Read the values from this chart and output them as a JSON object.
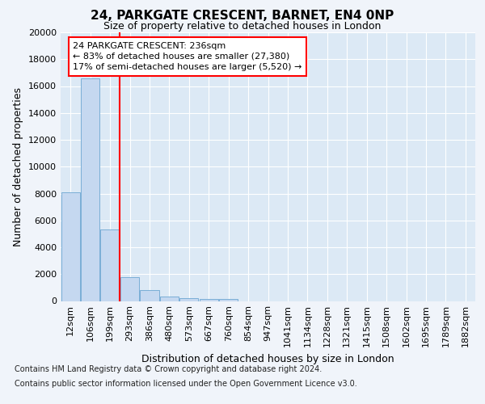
{
  "title_line1": "24, PARKGATE CRESCENT, BARNET, EN4 0NP",
  "title_line2": "Size of property relative to detached houses in London",
  "xlabel": "Distribution of detached houses by size in London",
  "ylabel": "Number of detached properties",
  "categories": [
    "12sqm",
    "106sqm",
    "199sqm",
    "293sqm",
    "386sqm",
    "480sqm",
    "573sqm",
    "667sqm",
    "760sqm",
    "854sqm",
    "947sqm",
    "1041sqm",
    "1134sqm",
    "1228sqm",
    "1321sqm",
    "1415sqm",
    "1508sqm",
    "1602sqm",
    "1695sqm",
    "1789sqm",
    "1882sqm"
  ],
  "values": [
    8100,
    16600,
    5300,
    1800,
    800,
    350,
    220,
    150,
    130,
    0,
    0,
    0,
    0,
    0,
    0,
    0,
    0,
    0,
    0,
    0,
    0
  ],
  "bar_color": "#c5d8f0",
  "bar_edge_color": "#7aaed6",
  "vline_x": 2.5,
  "vline_color": "red",
  "annotation_text": "24 PARKGATE CRESCENT: 236sqm\n← 83% of detached houses are smaller (27,380)\n17% of semi-detached houses are larger (5,520) →",
  "annotation_box_color": "white",
  "annotation_box_edge_color": "red",
  "ylim": [
    0,
    20000
  ],
  "yticks": [
    0,
    2000,
    4000,
    6000,
    8000,
    10000,
    12000,
    14000,
    16000,
    18000,
    20000
  ],
  "footer_line1": "Contains HM Land Registry data © Crown copyright and database right 2024.",
  "footer_line2": "Contains public sector information licensed under the Open Government Licence v3.0.",
  "background_color": "#f0f4fa",
  "plot_bg_color": "#dce9f5",
  "title_fontsize": 11,
  "subtitle_fontsize": 9,
  "ylabel_fontsize": 9,
  "xlabel_fontsize": 9,
  "tick_fontsize": 8,
  "annotation_fontsize": 8,
  "footer_fontsize": 7
}
